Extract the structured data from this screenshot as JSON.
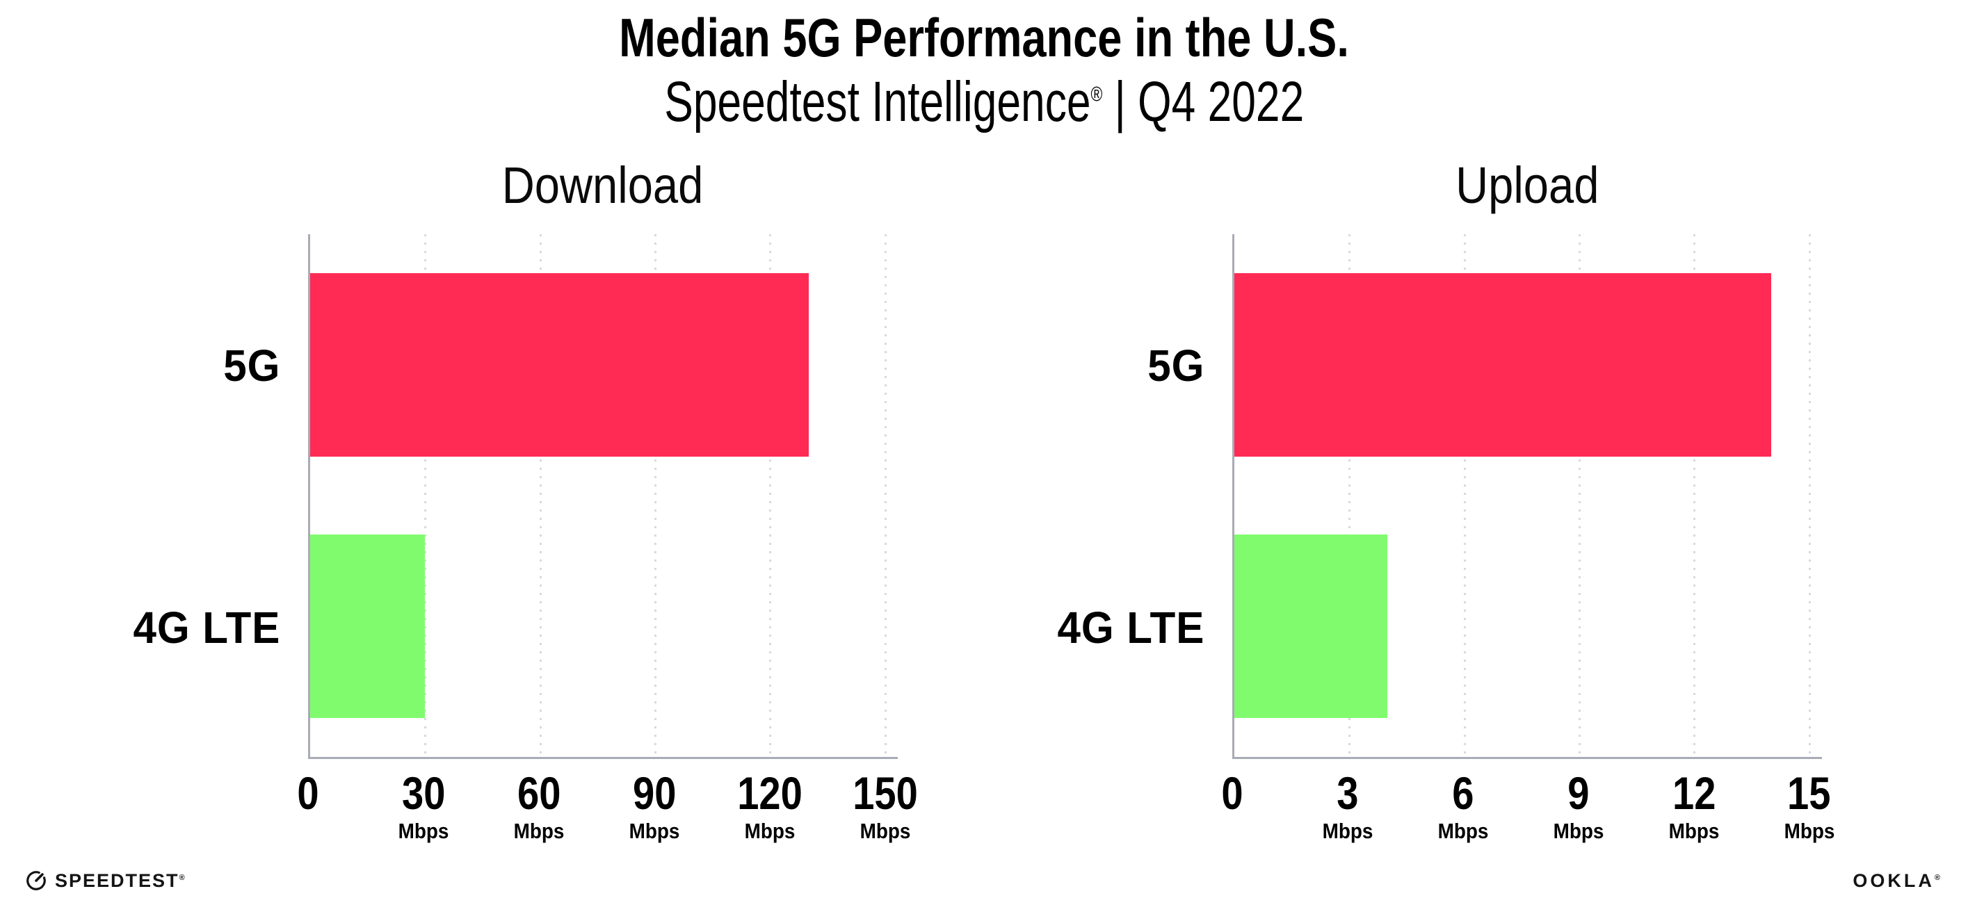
{
  "header": {
    "title": "Median 5G Performance in the U.S.",
    "subtitle_brand": "Speedtest Intelligence",
    "subtitle_reg": "®",
    "subtitle_rest": " | Q4 2022"
  },
  "chart_data": [
    {
      "type": "bar",
      "orientation": "horizontal",
      "title": "Download",
      "categories": [
        "5G",
        "4G LTE"
      ],
      "values": [
        130,
        30
      ],
      "unit": "Mbps",
      "xlabel": "",
      "ylabel": "",
      "xticks": [
        0,
        30,
        60,
        90,
        120,
        150
      ],
      "xlim": [
        0,
        153.3
      ],
      "bar_colors": [
        "#FF2B55",
        "#80FB6E"
      ],
      "grid": "dotted-vertical-gridlines",
      "legend": "none"
    },
    {
      "type": "bar",
      "orientation": "horizontal",
      "title": "Upload",
      "categories": [
        "5G",
        "4G LTE"
      ],
      "values": [
        14,
        4
      ],
      "unit": "Mbps",
      "xlabel": "",
      "ylabel": "",
      "xticks": [
        0,
        3,
        6,
        9,
        12,
        15
      ],
      "xlim": [
        0,
        15.33
      ],
      "bar_colors": [
        "#FF2B55",
        "#80FB6E"
      ],
      "grid": "dotted-vertical-gridlines",
      "legend": "none"
    }
  ],
  "footer": {
    "speedtest_label": "SPEEDTEST",
    "speedtest_reg": "®",
    "ookla_label": "OOKLA",
    "ookla_reg": "®"
  },
  "colors": {
    "bar_5g": "#FF2B55",
    "bar_4g_lte": "#80FB6E",
    "axis": "#a9abb5",
    "gridline": "#d7d9e2",
    "text": "#000000",
    "background": "#ffffff"
  }
}
